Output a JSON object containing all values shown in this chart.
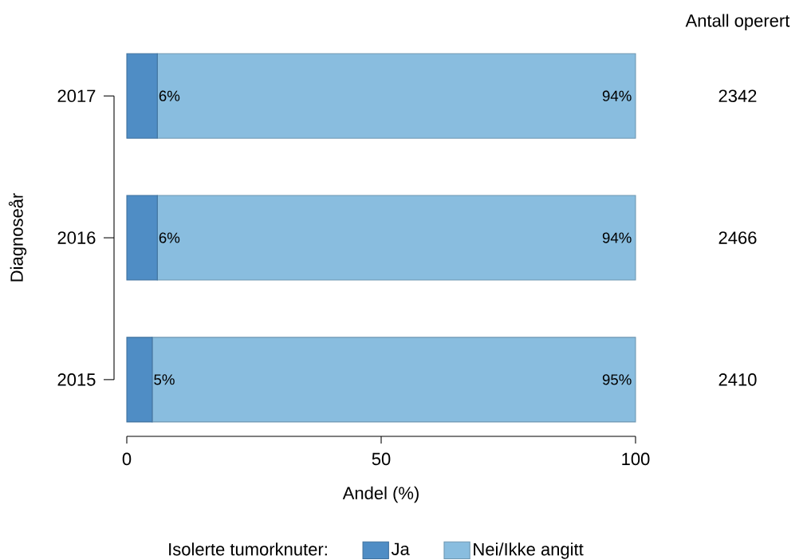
{
  "chart_data": {
    "type": "bar",
    "orientation": "horizontal",
    "stacked": true,
    "categories": [
      "2017",
      "2016",
      "2015"
    ],
    "series": [
      {
        "name": "Ja",
        "color": "#4f8dc5",
        "values": [
          6,
          6,
          5
        ],
        "value_labels": [
          "6%",
          "6%",
          "5%"
        ]
      },
      {
        "name": "Nei/Ikke angitt",
        "color": "#89bddf",
        "values": [
          94,
          94,
          95
        ],
        "value_labels": [
          "94%",
          "94%",
          "95%"
        ]
      }
    ],
    "xlim": [
      0,
      100
    ],
    "xticks": [
      0,
      50,
      100
    ],
    "xlabel": "Andel (%)",
    "ylabel": "Diagnoseår",
    "legend": "bottom",
    "legend_title": "Isolerte tumorknuter:",
    "annotations": [
      "Antall operert",
      "2342",
      "2466",
      "2410"
    ]
  }
}
